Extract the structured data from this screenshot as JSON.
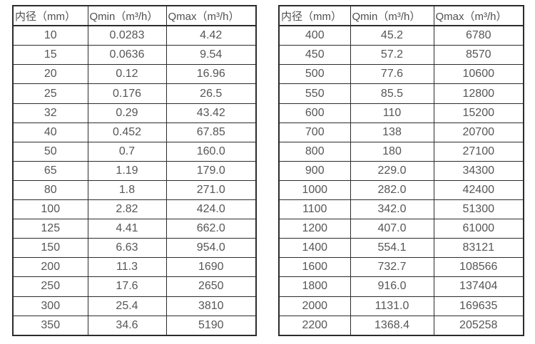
{
  "page": {
    "background_color": "#ffffff",
    "border_color": "#2b2b2b",
    "text_color": "#4f4f4f",
    "description": "flow-rate-specification-tables"
  },
  "tables": [
    {
      "name": "small-diameter-flow-table",
      "columns": [
        "内径（mm）",
        "Qmin（m³/h）",
        "Qmax（m³/h）"
      ],
      "rows": [
        [
          "10",
          "0.0283",
          "4.42"
        ],
        [
          "15",
          "0.0636",
          "9.54"
        ],
        [
          "20",
          "0.12",
          "16.96"
        ],
        [
          "25",
          "0.176",
          "26.5"
        ],
        [
          "32",
          "0.29",
          "43.42"
        ],
        [
          "40",
          "0.452",
          "67.85"
        ],
        [
          "50",
          "0.7",
          "160.0"
        ],
        [
          "65",
          "1.19",
          "179.0"
        ],
        [
          "80",
          "1.8",
          "271.0"
        ],
        [
          "100",
          "2.82",
          "424.0"
        ],
        [
          "125",
          "4.41",
          "662.0"
        ],
        [
          "150",
          "6.63",
          "954.0"
        ],
        [
          "200",
          "11.3",
          "1690"
        ],
        [
          "250",
          "17.6",
          "2650"
        ],
        [
          "300",
          "25.4",
          "3810"
        ],
        [
          "350",
          "34.6",
          "5190"
        ]
      ]
    },
    {
      "name": "large-diameter-flow-table",
      "columns": [
        "内径（mm）",
        "Qmin（m³/h）",
        "Qmax（m³/h）"
      ],
      "rows": [
        [
          "400",
          "45.2",
          "6780"
        ],
        [
          "450",
          "57.2",
          "8570"
        ],
        [
          "500",
          "77.6",
          "10600"
        ],
        [
          "550",
          "85.5",
          "12800"
        ],
        [
          "600",
          "110",
          "15200"
        ],
        [
          "700",
          "138",
          "20700"
        ],
        [
          "800",
          "180",
          "27100"
        ],
        [
          "900",
          "229.0",
          "34300"
        ],
        [
          "1000",
          "282.0",
          "42400"
        ],
        [
          "1100",
          "342.0",
          "51300"
        ],
        [
          "1200",
          "407.0",
          "61000"
        ],
        [
          "1400",
          "554.1",
          "83121"
        ],
        [
          "1600",
          "732.7",
          "108566"
        ],
        [
          "1800",
          "916.0",
          "137404"
        ],
        [
          "2000",
          "1131.0",
          "169635"
        ],
        [
          "2200",
          "1368.4",
          "205258"
        ]
      ]
    }
  ]
}
